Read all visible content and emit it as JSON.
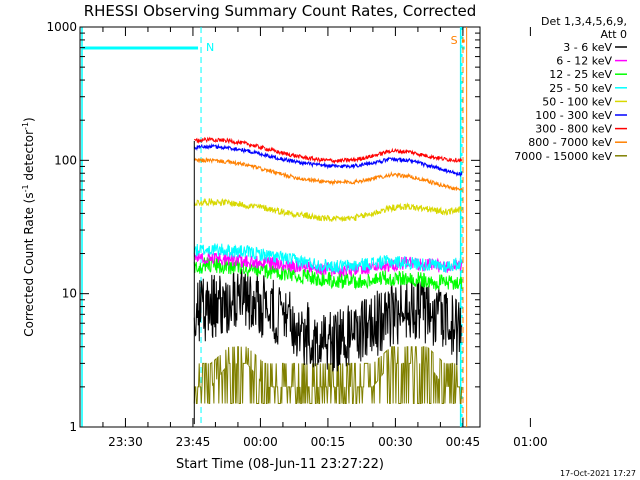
{
  "chart_data": {
    "type": "line",
    "title": "RHESSI Observing Summary Count Rates, Corrected",
    "xlabel": "Start Time (08-Jun-11 23:27:22)",
    "ylabel_main": "Corrected Count Rate (s",
    "ylabel_sup1": "-1",
    "ylabel_mid": " detector",
    "ylabel_sup2": "-1",
    "ylabel_end": ")",
    "y_scale": "log",
    "ylim": [
      1,
      1000
    ],
    "y_ticks": [
      {
        "value": 1,
        "label": "1"
      },
      {
        "value": 10,
        "label": "10"
      },
      {
        "value": 100,
        "label": "100"
      },
      {
        "value": 1000,
        "label": "1000"
      }
    ],
    "xlim_minutes": [
      -10.1,
      78.8
    ],
    "x_ticks": [
      {
        "minute": 0,
        "label": "23:30"
      },
      {
        "minute": 15,
        "label": "23:45"
      },
      {
        "minute": 30,
        "label": "00:00"
      },
      {
        "minute": 45,
        "label": "00:15"
      },
      {
        "minute": 60,
        "label": "00:30"
      },
      {
        "minute": 75,
        "label": "00:45"
      },
      {
        "minute": 90,
        "label": "01:00"
      }
    ],
    "legend_header_1": "Det 1,3,4,5,6,9,",
    "legend_header_2": "Att 0",
    "series": [
      {
        "name": "3 - 6 keV",
        "color": "#000000",
        "values": [
          7.5,
          7.8,
          8.3,
          8.8,
          8.0,
          6.5,
          5.2,
          4.8,
          4.6,
          5.0,
          5.8,
          6.8,
          7.8,
          7.5,
          6.2,
          4.8
        ]
      },
      {
        "name": "6 - 12 keV",
        "color": "#ff00ff",
        "values": [
          19,
          18.5,
          18,
          17.5,
          17,
          16.5,
          16,
          15.5,
          15,
          15.2,
          15.8,
          16.5,
          17,
          16.5,
          16,
          16.5
        ]
      },
      {
        "name": "12 - 25 keV",
        "color": "#00ff00",
        "values": [
          16,
          16.5,
          16,
          15.5,
          15,
          14,
          13.5,
          13,
          12.5,
          12.5,
          12.8,
          13.2,
          13,
          12.5,
          12,
          12
        ]
      },
      {
        "name": "25 - 50 keV",
        "color": "#00ffff",
        "values": [
          21,
          21.5,
          21,
          20.5,
          19.5,
          18.5,
          17.5,
          16.5,
          16,
          16.2,
          17,
          17.5,
          17,
          16.5,
          16,
          17
        ]
      },
      {
        "name": "50 - 100 keV",
        "color": "#d8d800",
        "values": [
          48,
          49,
          48,
          46,
          44,
          41,
          39,
          37,
          36,
          37,
          40,
          44,
          45,
          43,
          41,
          43
        ]
      },
      {
        "name": "100 - 300 keV",
        "color": "#0000ff",
        "values": [
          125,
          127,
          124,
          118,
          110,
          102,
          96,
          92,
          90,
          91,
          96,
          102,
          100,
          92,
          84,
          78
        ]
      },
      {
        "name": "300 - 800 keV",
        "color": "#ff0000",
        "values": [
          140,
          144,
          140,
          133,
          123,
          113,
          106,
          101,
          99,
          101,
          108,
          118,
          116,
          108,
          102,
          100
        ]
      },
      {
        "name": "800 - 7000 keV",
        "color": "#ff8000",
        "values": [
          100,
          100,
          97,
          92,
          85,
          78,
          73,
          70,
          68,
          69,
          73,
          78,
          76,
          70,
          64,
          60
        ]
      },
      {
        "name": "7000 - 15000 keV",
        "color": "#808000",
        "values": [
          2,
          2,
          3,
          3,
          2,
          2,
          2,
          2,
          2,
          2,
          2,
          3,
          3,
          3,
          2,
          2
        ]
      }
    ],
    "series_x_minutes": [
      15.3,
      19,
      23,
      27,
      31,
      35,
      39,
      43,
      47,
      51,
      55,
      59,
      63,
      67,
      71,
      74.8
    ],
    "annotations": [
      {
        "label": "N",
        "minute": 16.8,
        "color": "#00ffff"
      },
      {
        "label": "S",
        "minute": 74.5,
        "color": "#ff8000"
      }
    ],
    "grid": false
  },
  "footer": {
    "date_stamp": "17-Oct-2021 17:27"
  }
}
